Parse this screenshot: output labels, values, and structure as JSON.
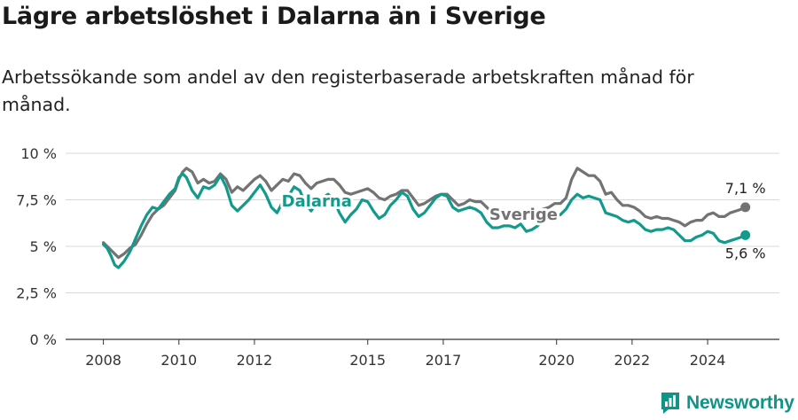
{
  "title": "Lägre arbetslöshet i Dalarna än i Sverige",
  "subtitle": "Arbetssökande som andel av den registerbaserade arbetskraften månad för månad.",
  "brand": "Newsworthy",
  "colors": {
    "dalarna": "#129a8c",
    "sverige": "#737373",
    "grid": "#d9d9d9",
    "axis": "#333333"
  },
  "chart_data": {
    "type": "line",
    "x_unit": "year",
    "xlim": [
      2007.0,
      2025.9
    ],
    "ylim": [
      0,
      10
    ],
    "y_ticks": [
      0,
      2.5,
      5,
      7.5,
      10
    ],
    "y_tick_labels": [
      "0 %",
      "2,5 %",
      "5 %",
      "7,5 %",
      "10 %"
    ],
    "x_ticks": [
      2008,
      2010,
      2012,
      2015,
      2017,
      2020,
      2022,
      2024
    ],
    "x_tick_labels": [
      "2008",
      "2010",
      "2012",
      "2015",
      "2017",
      "2020",
      "2022",
      "2024"
    ],
    "grid": "horizontal",
    "series": [
      {
        "name": "Sverige",
        "end_label": "7,1 %",
        "points": [
          [
            2008.0,
            5.2
          ],
          [
            2008.1,
            5.0
          ],
          [
            2008.25,
            4.7
          ],
          [
            2008.4,
            4.4
          ],
          [
            2008.55,
            4.6
          ],
          [
            2008.7,
            4.9
          ],
          [
            2008.85,
            5.1
          ],
          [
            2009.0,
            5.6
          ],
          [
            2009.15,
            6.2
          ],
          [
            2009.3,
            6.7
          ],
          [
            2009.45,
            7.0
          ],
          [
            2009.6,
            7.2
          ],
          [
            2009.75,
            7.6
          ],
          [
            2009.9,
            8.0
          ],
          [
            2010.0,
            8.6
          ],
          [
            2010.1,
            9.0
          ],
          [
            2010.2,
            9.2
          ],
          [
            2010.35,
            9.0
          ],
          [
            2010.5,
            8.4
          ],
          [
            2010.65,
            8.6
          ],
          [
            2010.8,
            8.4
          ],
          [
            2010.95,
            8.5
          ],
          [
            2011.1,
            8.9
          ],
          [
            2011.25,
            8.6
          ],
          [
            2011.4,
            7.9
          ],
          [
            2011.55,
            8.2
          ],
          [
            2011.7,
            8.0
          ],
          [
            2011.85,
            8.3
          ],
          [
            2012.0,
            8.6
          ],
          [
            2012.15,
            8.8
          ],
          [
            2012.3,
            8.5
          ],
          [
            2012.45,
            8.0
          ],
          [
            2012.6,
            8.3
          ],
          [
            2012.75,
            8.6
          ],
          [
            2012.9,
            8.5
          ],
          [
            2013.05,
            8.9
          ],
          [
            2013.2,
            8.8
          ],
          [
            2013.35,
            8.4
          ],
          [
            2013.5,
            8.1
          ],
          [
            2013.65,
            8.4
          ],
          [
            2013.8,
            8.5
          ],
          [
            2013.95,
            8.6
          ],
          [
            2014.1,
            8.6
          ],
          [
            2014.25,
            8.3
          ],
          [
            2014.4,
            7.9
          ],
          [
            2014.55,
            7.8
          ],
          [
            2014.7,
            7.9
          ],
          [
            2014.85,
            8.0
          ],
          [
            2015.0,
            8.1
          ],
          [
            2015.15,
            7.9
          ],
          [
            2015.3,
            7.6
          ],
          [
            2015.45,
            7.5
          ],
          [
            2015.6,
            7.7
          ],
          [
            2015.75,
            7.8
          ],
          [
            2015.9,
            8.0
          ],
          [
            2016.05,
            8.0
          ],
          [
            2016.2,
            7.6
          ],
          [
            2016.35,
            7.2
          ],
          [
            2016.5,
            7.3
          ],
          [
            2016.65,
            7.5
          ],
          [
            2016.8,
            7.7
          ],
          [
            2016.95,
            7.8
          ],
          [
            2017.1,
            7.8
          ],
          [
            2017.25,
            7.5
          ],
          [
            2017.4,
            7.2
          ],
          [
            2017.55,
            7.3
          ],
          [
            2017.7,
            7.5
          ],
          [
            2017.85,
            7.4
          ],
          [
            2018.0,
            7.4
          ],
          [
            2018.15,
            7.1
          ],
          [
            2018.3,
            6.8
          ],
          [
            2018.45,
            6.7
          ],
          [
            2018.6,
            6.8
          ],
          [
            2018.75,
            6.9
          ],
          [
            2018.9,
            6.8
          ],
          [
            2019.05,
            6.8
          ],
          [
            2019.2,
            6.7
          ],
          [
            2019.35,
            6.8
          ],
          [
            2019.5,
            6.9
          ],
          [
            2019.65,
            7.0
          ],
          [
            2019.8,
            7.1
          ],
          [
            2019.95,
            7.3
          ],
          [
            2020.1,
            7.3
          ],
          [
            2020.25,
            7.6
          ],
          [
            2020.4,
            8.6
          ],
          [
            2020.55,
            9.2
          ],
          [
            2020.7,
            9.0
          ],
          [
            2020.85,
            8.8
          ],
          [
            2021.0,
            8.8
          ],
          [
            2021.15,
            8.5
          ],
          [
            2021.3,
            7.8
          ],
          [
            2021.45,
            7.9
          ],
          [
            2021.6,
            7.5
          ],
          [
            2021.75,
            7.2
          ],
          [
            2021.9,
            7.2
          ],
          [
            2022.05,
            7.1
          ],
          [
            2022.2,
            6.9
          ],
          [
            2022.35,
            6.6
          ],
          [
            2022.5,
            6.5
          ],
          [
            2022.65,
            6.6
          ],
          [
            2022.8,
            6.5
          ],
          [
            2022.95,
            6.5
          ],
          [
            2023.1,
            6.4
          ],
          [
            2023.25,
            6.3
          ],
          [
            2023.4,
            6.1
          ],
          [
            2023.55,
            6.3
          ],
          [
            2023.7,
            6.4
          ],
          [
            2023.85,
            6.4
          ],
          [
            2024.0,
            6.7
          ],
          [
            2024.15,
            6.8
          ],
          [
            2024.3,
            6.6
          ],
          [
            2024.45,
            6.6
          ],
          [
            2024.6,
            6.8
          ],
          [
            2024.75,
            6.9
          ],
          [
            2024.9,
            7.0
          ],
          [
            2025.0,
            7.1
          ]
        ]
      },
      {
        "name": "Dalarna",
        "end_label": "5,6 %",
        "points": [
          [
            2008.0,
            5.1
          ],
          [
            2008.1,
            4.9
          ],
          [
            2008.2,
            4.5
          ],
          [
            2008.3,
            4.0
          ],
          [
            2008.4,
            3.85
          ],
          [
            2008.55,
            4.2
          ],
          [
            2008.7,
            4.7
          ],
          [
            2008.85,
            5.4
          ],
          [
            2009.0,
            6.1
          ],
          [
            2009.15,
            6.7
          ],
          [
            2009.3,
            7.1
          ],
          [
            2009.45,
            7.0
          ],
          [
            2009.6,
            7.4
          ],
          [
            2009.75,
            7.8
          ],
          [
            2009.9,
            8.1
          ],
          [
            2010.0,
            8.7
          ],
          [
            2010.1,
            8.9
          ],
          [
            2010.2,
            8.7
          ],
          [
            2010.35,
            8.0
          ],
          [
            2010.5,
            7.6
          ],
          [
            2010.65,
            8.2
          ],
          [
            2010.8,
            8.1
          ],
          [
            2010.95,
            8.3
          ],
          [
            2011.1,
            8.8
          ],
          [
            2011.25,
            8.2
          ],
          [
            2011.4,
            7.2
          ],
          [
            2011.55,
            6.9
          ],
          [
            2011.7,
            7.2
          ],
          [
            2011.85,
            7.5
          ],
          [
            2012.0,
            7.9
          ],
          [
            2012.15,
            8.3
          ],
          [
            2012.3,
            7.8
          ],
          [
            2012.45,
            7.1
          ],
          [
            2012.6,
            6.8
          ],
          [
            2012.75,
            7.4
          ],
          [
            2012.9,
            7.7
          ],
          [
            2013.05,
            8.2
          ],
          [
            2013.2,
            8.0
          ],
          [
            2013.35,
            7.3
          ],
          [
            2013.5,
            6.9
          ],
          [
            2013.65,
            7.3
          ],
          [
            2013.8,
            7.6
          ],
          [
            2013.95,
            7.8
          ],
          [
            2014.1,
            7.5
          ],
          [
            2014.25,
            6.8
          ],
          [
            2014.4,
            6.3
          ],
          [
            2014.55,
            6.7
          ],
          [
            2014.7,
            7.0
          ],
          [
            2014.85,
            7.5
          ],
          [
            2015.0,
            7.4
          ],
          [
            2015.15,
            6.9
          ],
          [
            2015.3,
            6.5
          ],
          [
            2015.45,
            6.7
          ],
          [
            2015.6,
            7.2
          ],
          [
            2015.75,
            7.5
          ],
          [
            2015.9,
            7.9
          ],
          [
            2016.05,
            7.7
          ],
          [
            2016.2,
            7.0
          ],
          [
            2016.35,
            6.6
          ],
          [
            2016.5,
            6.8
          ],
          [
            2016.65,
            7.2
          ],
          [
            2016.8,
            7.6
          ],
          [
            2016.95,
            7.8
          ],
          [
            2017.1,
            7.7
          ],
          [
            2017.25,
            7.1
          ],
          [
            2017.4,
            6.9
          ],
          [
            2017.55,
            7.0
          ],
          [
            2017.7,
            7.1
          ],
          [
            2017.85,
            7.0
          ],
          [
            2018.0,
            6.8
          ],
          [
            2018.15,
            6.3
          ],
          [
            2018.3,
            6.0
          ],
          [
            2018.45,
            6.0
          ],
          [
            2018.6,
            6.1
          ],
          [
            2018.75,
            6.1
          ],
          [
            2018.9,
            6.0
          ],
          [
            2019.05,
            6.2
          ],
          [
            2019.2,
            5.8
          ],
          [
            2019.35,
            5.9
          ],
          [
            2019.5,
            6.1
          ],
          [
            2019.65,
            6.4
          ],
          [
            2019.8,
            6.7
          ],
          [
            2019.95,
            6.6
          ],
          [
            2020.1,
            6.7
          ],
          [
            2020.25,
            7.0
          ],
          [
            2020.4,
            7.5
          ],
          [
            2020.55,
            7.8
          ],
          [
            2020.7,
            7.6
          ],
          [
            2020.85,
            7.7
          ],
          [
            2021.0,
            7.6
          ],
          [
            2021.15,
            7.5
          ],
          [
            2021.3,
            6.8
          ],
          [
            2021.45,
            6.7
          ],
          [
            2021.6,
            6.6
          ],
          [
            2021.75,
            6.4
          ],
          [
            2021.9,
            6.3
          ],
          [
            2022.05,
            6.4
          ],
          [
            2022.2,
            6.2
          ],
          [
            2022.35,
            5.9
          ],
          [
            2022.5,
            5.8
          ],
          [
            2022.65,
            5.9
          ],
          [
            2022.8,
            5.9
          ],
          [
            2022.95,
            6.0
          ],
          [
            2023.1,
            5.9
          ],
          [
            2023.25,
            5.6
          ],
          [
            2023.4,
            5.3
          ],
          [
            2023.55,
            5.3
          ],
          [
            2023.7,
            5.5
          ],
          [
            2023.85,
            5.6
          ],
          [
            2024.0,
            5.8
          ],
          [
            2024.15,
            5.7
          ],
          [
            2024.3,
            5.3
          ],
          [
            2024.45,
            5.2
          ],
          [
            2024.6,
            5.3
          ],
          [
            2024.75,
            5.4
          ],
          [
            2024.9,
            5.5
          ],
          [
            2025.0,
            5.6
          ]
        ]
      }
    ]
  }
}
